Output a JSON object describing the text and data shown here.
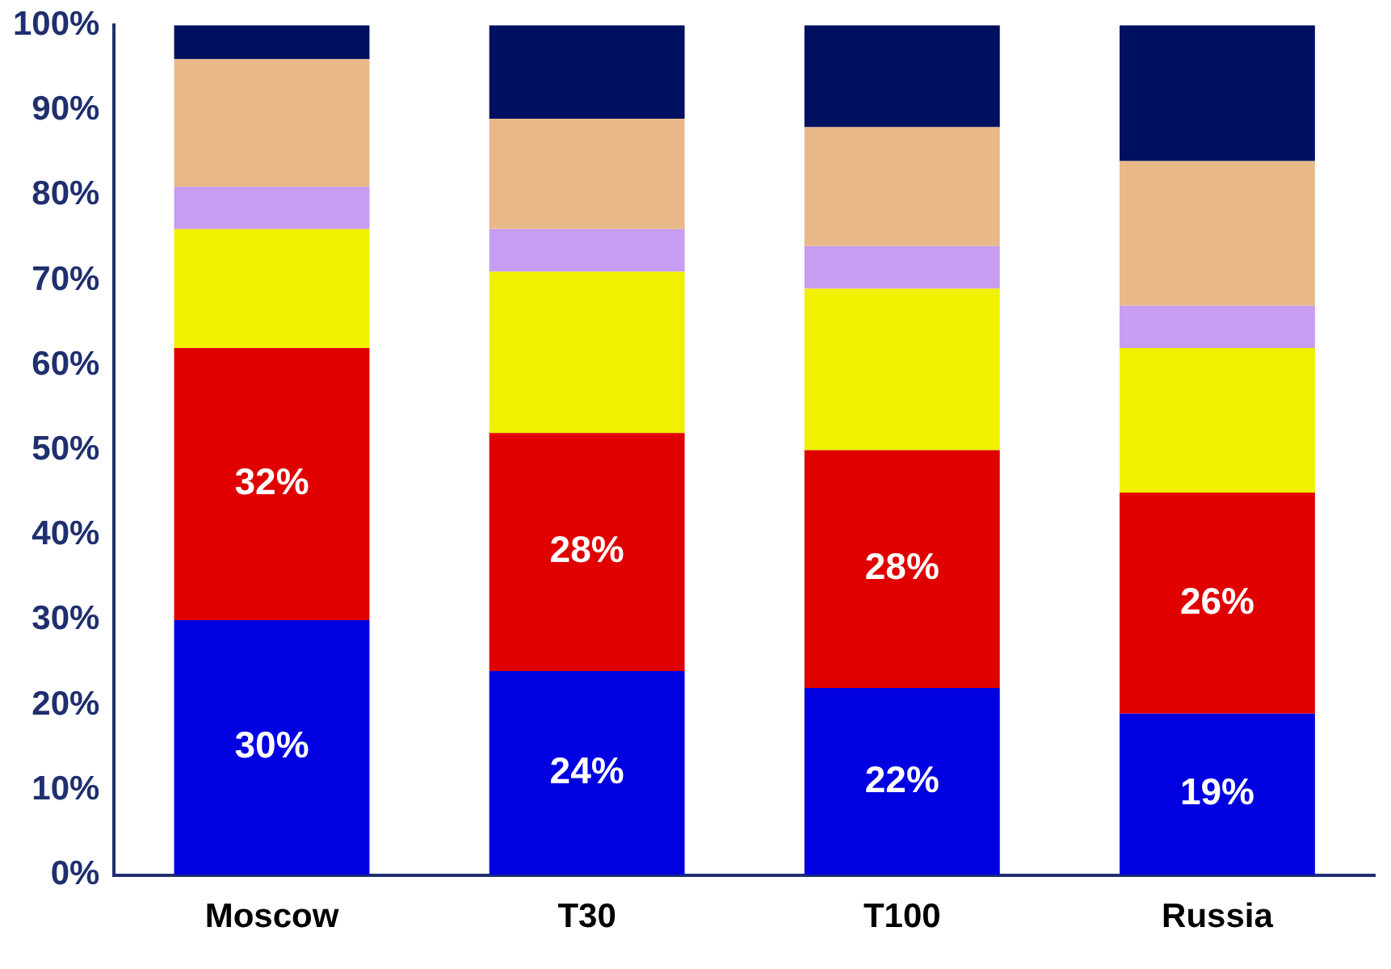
{
  "chart_data": {
    "type": "bar",
    "stacked": true,
    "categories": [
      "Moscow",
      "T30",
      "T100",
      "Russia"
    ],
    "series": [
      {
        "color": "#0000e0",
        "values": [
          30,
          24,
          22,
          19
        ],
        "value_labels": [
          "30%",
          "24%",
          "22%",
          "19%"
        ]
      },
      {
        "color": "#e00000",
        "values": [
          32,
          28,
          28,
          26
        ],
        "value_labels": [
          "32%",
          "28%",
          "28%",
          "26%"
        ]
      },
      {
        "color": "#f0f000",
        "values": [
          14,
          19,
          19,
          17
        ]
      },
      {
        "color": "#c89cf0",
        "values": [
          5,
          5,
          5,
          5
        ]
      },
      {
        "color": "#e8b888",
        "values": [
          15,
          13,
          14,
          17
        ]
      },
      {
        "color": "#001060",
        "values": [
          4,
          11,
          12,
          16
        ]
      }
    ],
    "ylim": [
      0,
      100
    ],
    "yticks": [
      {
        "value": 0,
        "label": "0%"
      },
      {
        "value": 10,
        "label": "10%"
      },
      {
        "value": 20,
        "label": "20%"
      },
      {
        "value": 30,
        "label": "30%"
      },
      {
        "value": 40,
        "label": "40%"
      },
      {
        "value": 50,
        "label": "50%"
      },
      {
        "value": 60,
        "label": "60%"
      },
      {
        "value": 70,
        "label": "70%"
      },
      {
        "value": 80,
        "label": "80%"
      },
      {
        "value": 90,
        "label": "90%"
      },
      {
        "value": 100,
        "label": "100%"
      }
    ],
    "grid": false,
    "legend": false
  }
}
